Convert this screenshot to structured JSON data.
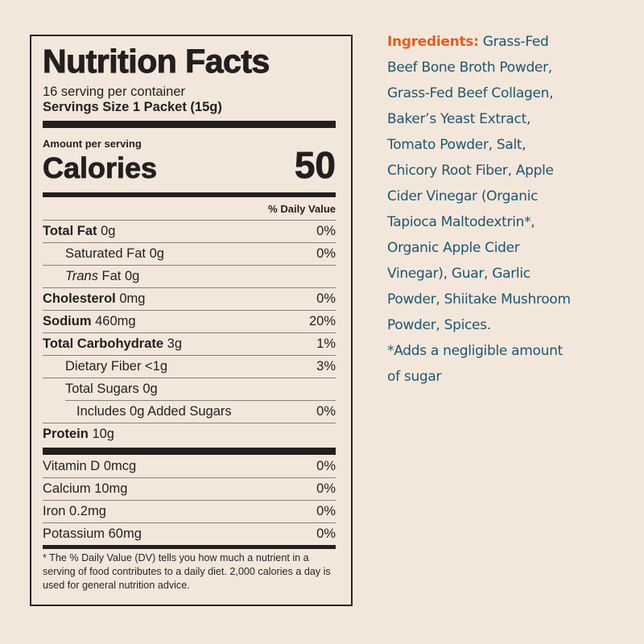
{
  "label": {
    "title": "Nutrition Facts",
    "servings_per_container": "16 serving per container",
    "serving_size": "Servings Size 1 Packet (15g)",
    "amount_per_serving": "Amount per serving",
    "calories_label": "Calories",
    "calories_value": "50",
    "daily_value_header": "% Daily Value",
    "nutrients": [
      {
        "name": "Total Fat",
        "amount": "0g",
        "dv": "0%",
        "bold": true,
        "indent": 0
      },
      {
        "name": "Saturated Fat",
        "amount": "0g",
        "dv": "0%",
        "bold": false,
        "indent": 1
      },
      {
        "name": "Trans",
        "name_suffix": "Fat",
        "amount": "0g",
        "dv": "",
        "bold": false,
        "indent": 1,
        "italic_prefix": true
      },
      {
        "name": "Cholesterol",
        "amount": "0mg",
        "dv": "0%",
        "bold": true,
        "indent": 0
      },
      {
        "name": "Sodium",
        "amount": "460mg",
        "dv": "20%",
        "bold": true,
        "indent": 0
      },
      {
        "name": "Total Carbohydrate",
        "amount": "3g",
        "dv": "1%",
        "bold": true,
        "indent": 0
      },
      {
        "name": "Dietary Fiber",
        "amount": "<1g",
        "dv": "3%",
        "bold": false,
        "indent": 1
      },
      {
        "name": "Total Sugars",
        "amount": "0g",
        "dv": "",
        "bold": false,
        "indent": 1
      },
      {
        "name": "Includes 0g Added Sugars",
        "amount": "",
        "dv": "0%",
        "bold": false,
        "indent": 2
      },
      {
        "name": "Protein",
        "amount": "10g",
        "dv": "",
        "bold": true,
        "indent": 0
      }
    ],
    "vitamins": [
      {
        "name": "Vitamin D",
        "amount": "0mcg",
        "dv": "0%"
      },
      {
        "name": "Calcium",
        "amount": "10mg",
        "dv": "0%"
      },
      {
        "name": "Iron",
        "amount": "0.2mg",
        "dv": "0%"
      },
      {
        "name": "Potassium",
        "amount": "60mg",
        "dv": "0%"
      }
    ],
    "footnote": "* The % Daily Value (DV) tells you how much a nutrient in a serving of food contributes to a daily diet. 2,000 calories a day is used for general nutrition advice."
  },
  "ingredients": {
    "label": "Ingredients:",
    "lines": [
      "Grass-Fed",
      "Beef Bone Broth Powder,",
      "Grass-Fed Beef Collagen,",
      "Baker’s Yeast Extract,",
      "Tomato Powder, Salt,",
      "Chicory Root Fiber, Apple",
      "Cider Vinegar (Organic",
      "Tapioca Maltodextrin*,",
      "Organic Apple Cider",
      "Vinegar), Guar, Garlic",
      "Powder, Shiitake Mushroom",
      "Powder, Spices.",
      "*Adds a negligible amount",
      "of sugar"
    ],
    "colors": {
      "label": "#e0601f",
      "text": "#1f5670"
    }
  },
  "colors": {
    "background": "#f3e7dc",
    "ink": "#231f20"
  }
}
